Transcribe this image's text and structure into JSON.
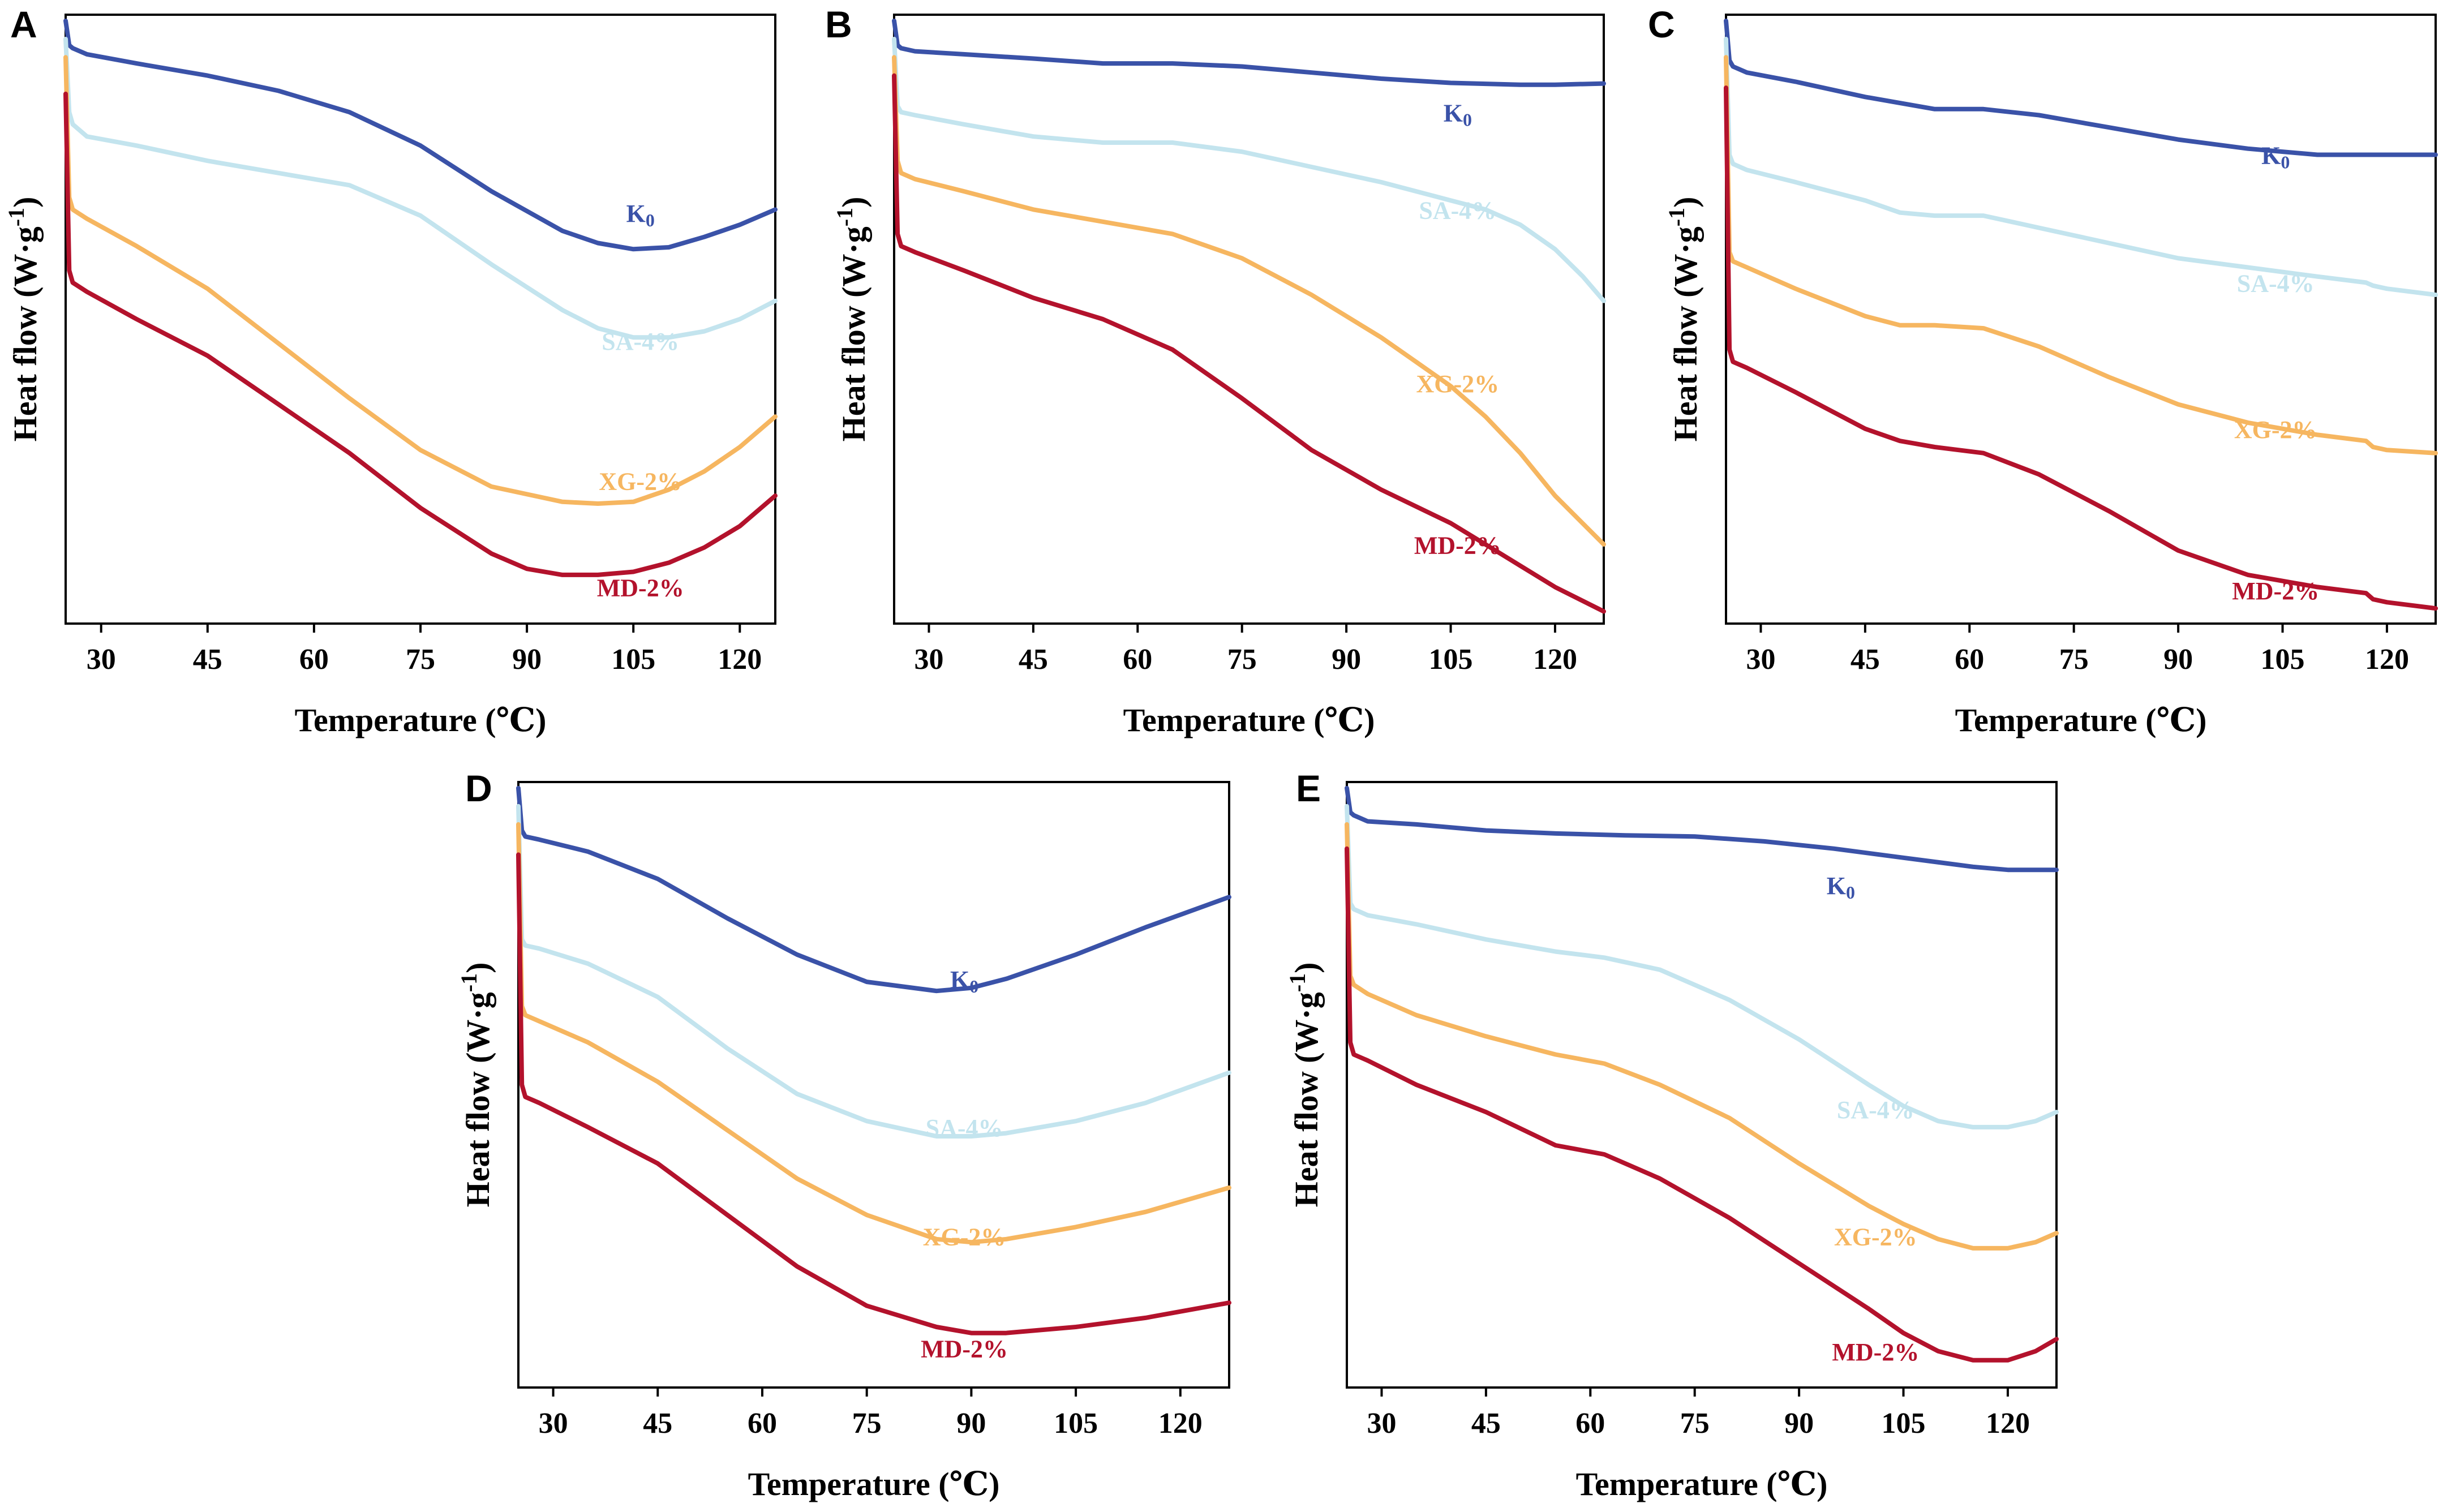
{
  "figure": {
    "colors": {
      "K0": "#3a52a8",
      "SA-4%": "#c3e4ee",
      "XG-2%": "#f6b660",
      "MD-2%": "#b3122c"
    }
  },
  "chart_data": [
    {
      "panel": "A",
      "type": "line",
      "xlabel": "Temperature (℃)",
      "ylabel": "Heat flow (W·g",
      "ylabel_sup": "-1",
      "ylabel_close": ")",
      "xlim": [
        25,
        125
      ],
      "ylim": [
        0,
        1
      ],
      "xticks": [
        "30",
        "45",
        "60",
        "75",
        "90",
        "105",
        "120"
      ],
      "series": [
        {
          "name": "K0",
          "label": "K",
          "label_sub": "0",
          "label_at": [
            106,
            0.66
          ],
          "color": "#3a52a8",
          "x": [
            25,
            25.5,
            26,
            28,
            35,
            45,
            55,
            65,
            75,
            85,
            95,
            100,
            105,
            110,
            115,
            120,
            125
          ],
          "y": [
            0.99,
            0.95,
            0.945,
            0.935,
            0.92,
            0.9,
            0.875,
            0.84,
            0.785,
            0.71,
            0.645,
            0.625,
            0.615,
            0.618,
            0.635,
            0.655,
            0.68
          ]
        },
        {
          "name": "SA-4%",
          "label": "SA-4%",
          "label_at": [
            106,
            0.45
          ],
          "color": "#c3e4ee",
          "x": [
            25,
            25.5,
            26,
            28,
            35,
            45,
            55,
            65,
            75,
            85,
            95,
            100,
            105,
            110,
            115,
            120,
            125
          ],
          "y": [
            0.96,
            0.84,
            0.82,
            0.8,
            0.785,
            0.76,
            0.74,
            0.72,
            0.67,
            0.59,
            0.515,
            0.485,
            0.47,
            0.47,
            0.48,
            0.5,
            0.53
          ]
        },
        {
          "name": "XG-2%",
          "label": "XG-2%",
          "label_at": [
            106,
            0.22
          ],
          "color": "#f6b660",
          "x": [
            25,
            25.5,
            26,
            28,
            35,
            45,
            55,
            65,
            75,
            85,
            95,
            100,
            105,
            110,
            115,
            120,
            125
          ],
          "y": [
            0.93,
            0.7,
            0.68,
            0.665,
            0.62,
            0.55,
            0.46,
            0.37,
            0.285,
            0.225,
            0.2,
            0.197,
            0.2,
            0.22,
            0.25,
            0.29,
            0.34
          ]
        },
        {
          "name": "MD-2%",
          "label": "MD-2%",
          "label_at": [
            106,
            0.045
          ],
          "color": "#b3122c",
          "x": [
            25,
            25.5,
            26,
            28,
            35,
            45,
            55,
            65,
            75,
            85,
            90,
            95,
            100,
            105,
            110,
            115,
            120,
            125
          ],
          "y": [
            0.87,
            0.58,
            0.56,
            0.545,
            0.5,
            0.44,
            0.36,
            0.28,
            0.19,
            0.115,
            0.09,
            0.08,
            0.08,
            0.085,
            0.1,
            0.125,
            0.16,
            0.21
          ]
        }
      ]
    },
    {
      "panel": "B",
      "type": "line",
      "xlabel": "Temperature (℃)",
      "ylabel": "Heat flow (W·g",
      "ylabel_sup": "-1",
      "ylabel_close": ")",
      "xlim": [
        25,
        127
      ],
      "ylim": [
        0,
        1
      ],
      "xticks": [
        "30",
        "45",
        "60",
        "75",
        "90",
        "105",
        "120"
      ],
      "series": [
        {
          "name": "K0",
          "label": "K",
          "label_sub": "0",
          "label_at": [
            106,
            0.825
          ],
          "color": "#3a52a8",
          "x": [
            25,
            25.5,
            26,
            28,
            35,
            45,
            55,
            65,
            75,
            85,
            95,
            105,
            115,
            120,
            127
          ],
          "y": [
            0.99,
            0.95,
            0.945,
            0.94,
            0.935,
            0.928,
            0.92,
            0.92,
            0.915,
            0.905,
            0.895,
            0.888,
            0.885,
            0.885,
            0.887
          ]
        },
        {
          "name": "SA-4%",
          "label": "SA-4%",
          "label_at": [
            106,
            0.665
          ],
          "color": "#c3e4ee",
          "x": [
            25,
            25.5,
            26,
            28,
            35,
            45,
            55,
            65,
            75,
            85,
            95,
            105,
            110,
            115,
            120,
            124,
            127
          ],
          "y": [
            0.96,
            0.85,
            0.84,
            0.835,
            0.82,
            0.8,
            0.79,
            0.79,
            0.775,
            0.75,
            0.725,
            0.695,
            0.68,
            0.655,
            0.615,
            0.57,
            0.53
          ]
        },
        {
          "name": "XG-2%",
          "label": "XG-2%",
          "label_at": [
            106,
            0.38
          ],
          "color": "#f6b660",
          "x": [
            25,
            25.5,
            26,
            28,
            35,
            45,
            55,
            65,
            75,
            85,
            95,
            100,
            105,
            110,
            115,
            120,
            127
          ],
          "y": [
            0.93,
            0.76,
            0.74,
            0.73,
            0.71,
            0.68,
            0.66,
            0.64,
            0.6,
            0.54,
            0.47,
            0.43,
            0.39,
            0.34,
            0.28,
            0.21,
            0.13
          ]
        },
        {
          "name": "MD-2%",
          "label": "MD-2%",
          "label_at": [
            106,
            0.115
          ],
          "color": "#b3122c",
          "x": [
            25,
            25.5,
            26,
            28,
            35,
            45,
            55,
            65,
            75,
            85,
            95,
            105,
            110,
            115,
            120,
            127
          ],
          "y": [
            0.9,
            0.64,
            0.62,
            0.61,
            0.58,
            0.535,
            0.5,
            0.45,
            0.37,
            0.285,
            0.22,
            0.165,
            0.13,
            0.095,
            0.06,
            0.02
          ]
        }
      ]
    },
    {
      "panel": "C",
      "type": "line",
      "xlabel": "Temperature (℃)",
      "ylabel": "Heat flow (W·g",
      "ylabel_sup": "-1",
      "ylabel_close": ")",
      "xlim": [
        25,
        127
      ],
      "ylim": [
        0,
        1
      ],
      "xticks": [
        "30",
        "45",
        "60",
        "75",
        "90",
        "105",
        "120"
      ],
      "series": [
        {
          "name": "K0",
          "label": "K",
          "label_sub": "0",
          "label_at": [
            104,
            0.755
          ],
          "color": "#3a52a8",
          "x": [
            25,
            25.5,
            26,
            28,
            35,
            45,
            55,
            62,
            70,
            80,
            90,
            100,
            110,
            120,
            127
          ],
          "y": [
            0.99,
            0.925,
            0.915,
            0.905,
            0.89,
            0.865,
            0.845,
            0.845,
            0.835,
            0.815,
            0.795,
            0.78,
            0.77,
            0.77,
            0.77
          ]
        },
        {
          "name": "SA-4%",
          "label": "SA-4%",
          "label_at": [
            104,
            0.545
          ],
          "color": "#c3e4ee",
          "x": [
            25,
            25.5,
            26,
            28,
            35,
            45,
            50,
            55,
            62,
            70,
            80,
            90,
            100,
            110,
            117,
            118,
            120,
            127
          ],
          "y": [
            0.96,
            0.77,
            0.755,
            0.745,
            0.725,
            0.695,
            0.675,
            0.67,
            0.67,
            0.65,
            0.625,
            0.6,
            0.585,
            0.57,
            0.56,
            0.555,
            0.55,
            0.54
          ]
        },
        {
          "name": "XG-2%",
          "label": "XG-2%",
          "label_at": [
            104,
            0.305
          ],
          "color": "#f6b660",
          "x": [
            25,
            25.5,
            26,
            28,
            35,
            45,
            50,
            55,
            62,
            70,
            80,
            90,
            100,
            110,
            117,
            118,
            120,
            127
          ],
          "y": [
            0.93,
            0.61,
            0.595,
            0.585,
            0.55,
            0.505,
            0.49,
            0.49,
            0.485,
            0.455,
            0.405,
            0.36,
            0.33,
            0.31,
            0.3,
            0.29,
            0.285,
            0.28
          ]
        },
        {
          "name": "MD-2%",
          "label": "MD-2%",
          "label_at": [
            104,
            0.04
          ],
          "color": "#b3122c",
          "x": [
            25,
            25.5,
            26,
            28,
            35,
            45,
            50,
            55,
            62,
            70,
            80,
            90,
            100,
            110,
            117,
            118,
            120,
            127
          ],
          "y": [
            0.88,
            0.45,
            0.43,
            0.42,
            0.38,
            0.32,
            0.3,
            0.29,
            0.28,
            0.245,
            0.185,
            0.12,
            0.08,
            0.06,
            0.05,
            0.04,
            0.035,
            0.025
          ]
        }
      ]
    },
    {
      "panel": "D",
      "type": "line",
      "xlabel": "Temperature (℃)",
      "ylabel": "Heat flow (W·g",
      "ylabel_sup": "-1",
      "ylabel_close": ")",
      "xlim": [
        25,
        127
      ],
      "ylim": [
        0,
        1
      ],
      "xticks": [
        "30",
        "45",
        "60",
        "75",
        "90",
        "105",
        "120"
      ],
      "series": [
        {
          "name": "K0",
          "label": "K",
          "label_sub": "0",
          "label_at": [
            89,
            0.66
          ],
          "color": "#3a52a8",
          "x": [
            25,
            25.5,
            26,
            28,
            35,
            45,
            55,
            65,
            75,
            85,
            90,
            95,
            105,
            115,
            127
          ],
          "y": [
            0.99,
            0.92,
            0.91,
            0.905,
            0.885,
            0.84,
            0.775,
            0.715,
            0.67,
            0.655,
            0.66,
            0.675,
            0.715,
            0.76,
            0.81
          ]
        },
        {
          "name": "SA-4%",
          "label": "SA-4%",
          "label_at": [
            89,
            0.415
          ],
          "color": "#c3e4ee",
          "x": [
            25,
            25.5,
            26,
            28,
            35,
            45,
            55,
            65,
            75,
            85,
            90,
            95,
            105,
            115,
            127
          ],
          "y": [
            0.96,
            0.74,
            0.73,
            0.725,
            0.7,
            0.645,
            0.56,
            0.485,
            0.44,
            0.415,
            0.415,
            0.42,
            0.44,
            0.47,
            0.52
          ]
        },
        {
          "name": "XG-2%",
          "label": "XG-2%",
          "label_at": [
            89,
            0.235
          ],
          "color": "#f6b660",
          "x": [
            25,
            25.5,
            26,
            28,
            35,
            45,
            55,
            65,
            75,
            85,
            90,
            95,
            105,
            115,
            127
          ],
          "y": [
            0.93,
            0.63,
            0.615,
            0.605,
            0.57,
            0.505,
            0.425,
            0.345,
            0.285,
            0.245,
            0.24,
            0.245,
            0.265,
            0.29,
            0.33
          ]
        },
        {
          "name": "MD-2%",
          "label": "MD-2%",
          "label_at": [
            89,
            0.05
          ],
          "color": "#b3122c",
          "x": [
            25,
            25.5,
            26,
            28,
            35,
            45,
            55,
            65,
            75,
            85,
            90,
            95,
            105,
            115,
            127
          ],
          "y": [
            0.88,
            0.5,
            0.48,
            0.47,
            0.43,
            0.37,
            0.285,
            0.2,
            0.135,
            0.1,
            0.09,
            0.09,
            0.1,
            0.115,
            0.14
          ]
        }
      ]
    },
    {
      "panel": "E",
      "type": "line",
      "xlabel": "Temperature (℃)",
      "ylabel": "Heat flow (W·g",
      "ylabel_sup": "-1",
      "ylabel_close": ")",
      "xlim": [
        25,
        127
      ],
      "ylim": [
        0,
        1
      ],
      "xticks": [
        "30",
        "45",
        "60",
        "75",
        "90",
        "105",
        "120"
      ],
      "series": [
        {
          "name": "K0",
          "label": "K",
          "label_sub": "0",
          "label_at": [
            96,
            0.815
          ],
          "color": "#3a52a8",
          "x": [
            25,
            25.5,
            26,
            28,
            35,
            45,
            55,
            65,
            75,
            85,
            95,
            105,
            115,
            120,
            127
          ],
          "y": [
            0.99,
            0.95,
            0.945,
            0.935,
            0.93,
            0.92,
            0.915,
            0.912,
            0.91,
            0.902,
            0.89,
            0.875,
            0.86,
            0.855,
            0.855
          ]
        },
        {
          "name": "SA-4%",
          "label": "SA-4%",
          "label_at": [
            101,
            0.445
          ],
          "color": "#c3e4ee",
          "x": [
            25,
            25.5,
            26,
            28,
            35,
            45,
            55,
            62,
            70,
            80,
            90,
            100,
            105,
            110,
            115,
            120,
            124,
            127
          ],
          "y": [
            0.96,
            0.8,
            0.79,
            0.78,
            0.765,
            0.74,
            0.72,
            0.71,
            0.69,
            0.64,
            0.575,
            0.5,
            0.465,
            0.44,
            0.43,
            0.43,
            0.44,
            0.455
          ]
        },
        {
          "name": "XG-2%",
          "label": "XG-2%",
          "label_at": [
            101,
            0.235
          ],
          "color": "#f6b660",
          "x": [
            25,
            25.5,
            26,
            28,
            35,
            45,
            55,
            62,
            70,
            80,
            90,
            100,
            105,
            110,
            115,
            120,
            124,
            127
          ],
          "y": [
            0.93,
            0.68,
            0.665,
            0.65,
            0.615,
            0.58,
            0.55,
            0.535,
            0.5,
            0.445,
            0.37,
            0.3,
            0.27,
            0.245,
            0.23,
            0.23,
            0.24,
            0.255
          ]
        },
        {
          "name": "MD-2%",
          "label": "MD-2%",
          "label_at": [
            101,
            0.045
          ],
          "color": "#b3122c",
          "x": [
            25,
            25.5,
            26,
            28,
            35,
            45,
            55,
            62,
            70,
            80,
            90,
            100,
            105,
            110,
            115,
            120,
            124,
            127
          ],
          "y": [
            0.89,
            0.57,
            0.55,
            0.54,
            0.5,
            0.455,
            0.4,
            0.385,
            0.345,
            0.28,
            0.205,
            0.13,
            0.09,
            0.06,
            0.045,
            0.045,
            0.06,
            0.08
          ]
        }
      ]
    }
  ]
}
